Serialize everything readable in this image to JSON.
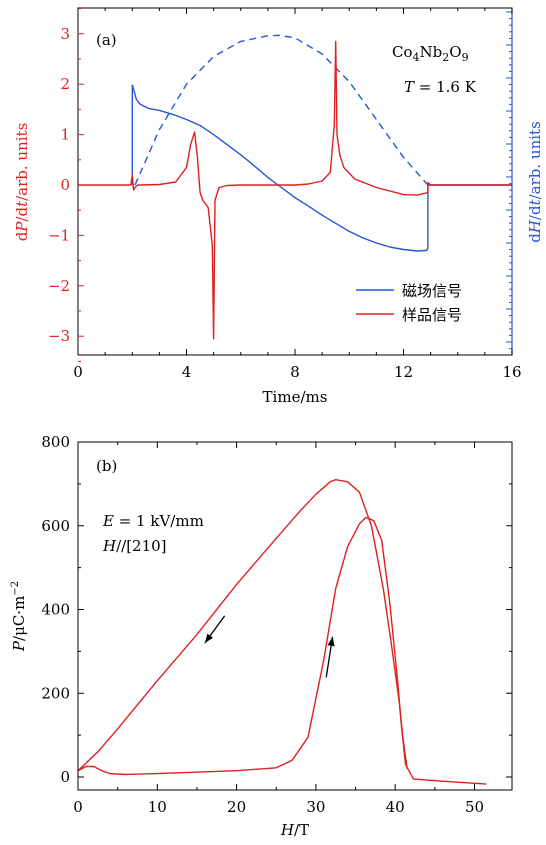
{
  "chart_data": [
    {
      "panel": "(a)",
      "type": "line",
      "xlabel": "Time/ms",
      "ylabel_left": "dP/dt/arb. units",
      "ylabel_right": "dH/dt/arb. units",
      "xlim": [
        0,
        16
      ],
      "ylim": [
        -3.5,
        3.5
      ],
      "xticks": [
        "0",
        "4",
        "8",
        "12",
        "16"
      ],
      "yticks": [
        "3",
        "2",
        "1",
        "0",
        "−1",
        "−2",
        "−3"
      ],
      "annotations": [
        "Co4Nb2O9",
        "T = 1.6 K"
      ],
      "legend_position": "lower-right",
      "colors": {
        "field": "#2456d6",
        "sample": "#e0201f",
        "axis_left": "#e0201f",
        "axis_right": "#2456d6"
      },
      "series": [
        {
          "name": "磁场信号",
          "color": "#2456d6",
          "style": "solid",
          "x": [
            2.0,
            2.0,
            2.05,
            2.15,
            2.3,
            2.6,
            3.0,
            3.5,
            4.0,
            4.5,
            5.0,
            5.5,
            6.0,
            6.5,
            7.0,
            7.5,
            8.0,
            8.5,
            9.0,
            9.5,
            10.0,
            10.5,
            11.0,
            11.5,
            12.0,
            12.5,
            12.85,
            12.9,
            12.9,
            13.2,
            16.0
          ],
          "y": [
            0,
            1.98,
            1.9,
            1.7,
            1.6,
            1.52,
            1.48,
            1.4,
            1.3,
            1.18,
            1.0,
            0.8,
            0.6,
            0.38,
            0.15,
            -0.05,
            -0.25,
            -0.42,
            -0.6,
            -0.76,
            -0.92,
            -1.05,
            -1.15,
            -1.23,
            -1.28,
            -1.31,
            -1.3,
            -1.25,
            0,
            0,
            0
          ]
        },
        {
          "name": "",
          "color": "#2456d6",
          "style": "dashed",
          "x": [
            2.1,
            3,
            4,
            5,
            6,
            7,
            7.4,
            8,
            9,
            10,
            11,
            12,
            12.9
          ],
          "y": [
            0,
            1.1,
            2.0,
            2.55,
            2.85,
            2.96,
            2.97,
            2.92,
            2.6,
            2.05,
            1.3,
            0.55,
            0
          ]
        },
        {
          "name": "样品信号",
          "color": "#e0201f",
          "style": "solid",
          "x": [
            0,
            1.95,
            2.0,
            2.05,
            2.1,
            2.2,
            2.3,
            3.0,
            3.6,
            4.0,
            4.15,
            4.3,
            4.4,
            4.5,
            4.6,
            4.8,
            4.95,
            5.0,
            5.05,
            5.2,
            5.5,
            6.0,
            7.0,
            8.0,
            8.5,
            9.0,
            9.3,
            9.45,
            9.5,
            9.55,
            9.65,
            9.8,
            10.2,
            11.0,
            12.0,
            12.5,
            12.9,
            12.9,
            13.0,
            16.0
          ],
          "y": [
            0,
            0,
            0.2,
            -0.1,
            -0.05,
            0,
            0,
            0.01,
            0.06,
            0.35,
            0.8,
            1.05,
            0.55,
            -0.15,
            -0.3,
            -0.45,
            -1.2,
            -3.05,
            -0.3,
            -0.05,
            -0.01,
            0,
            0,
            0,
            0.02,
            0.08,
            0.25,
            1.2,
            2.85,
            1.0,
            0.6,
            0.35,
            0.12,
            -0.05,
            -0.19,
            -0.2,
            -0.15,
            0.05,
            0,
            0
          ]
        }
      ]
    },
    {
      "panel": "(b)",
      "type": "line",
      "xlabel": "H/T",
      "ylabel": "P/μC·m⁻²",
      "xlim": [
        0,
        55
      ],
      "ylim": [
        -25,
        800
      ],
      "xticks": [
        "0",
        "10",
        "20",
        "30",
        "40",
        "50"
      ],
      "yticks": [
        "0",
        "200",
        "400",
        "600",
        "800"
      ],
      "annotations": [
        "E = 1 kV/mm",
        "H//[210]"
      ],
      "colors": {
        "curve": "#e0201f",
        "arrow": "#000000"
      },
      "series": [
        {
          "name": "",
          "color": "#e0201f",
          "style": "solid",
          "x": [
            0,
            1.0,
            2.0,
            3.0,
            4.0,
            6.0,
            10,
            20,
            25,
            27,
            29,
            31,
            32.5,
            34,
            35.5,
            36.3,
            37.3,
            38.3,
            39.3,
            40.3,
            40.8,
            41.3,
            42.3,
            46,
            51.5
          ],
          "y": [
            15,
            25,
            25,
            15,
            8,
            6,
            8,
            15,
            22,
            40,
            95,
            280,
            450,
            550,
            605,
            620,
            612,
            565,
            420,
            230,
            120,
            30,
            -5,
            -10,
            -17
          ]
        },
        {
          "name": "",
          "color": "#e0201f",
          "style": "solid",
          "x": [
            0,
            2.5,
            5,
            10,
            15,
            20,
            25,
            28,
            30,
            31.8,
            32.5,
            34,
            35.5,
            37,
            38.5,
            39.5,
            40.5,
            41,
            41.5
          ],
          "y": [
            15,
            60,
            115,
            230,
            340,
            460,
            570,
            635,
            675,
            705,
            710,
            705,
            680,
            600,
            450,
            320,
            180,
            90,
            20
          ]
        }
      ],
      "arrows": [
        {
          "direction": "down-left",
          "from": [
            18.5,
            385
          ],
          "to": [
            16.0,
            320
          ]
        },
        {
          "direction": "up",
          "from": [
            31.3,
            238
          ],
          "to": [
            32.1,
            335
          ]
        }
      ]
    }
  ]
}
